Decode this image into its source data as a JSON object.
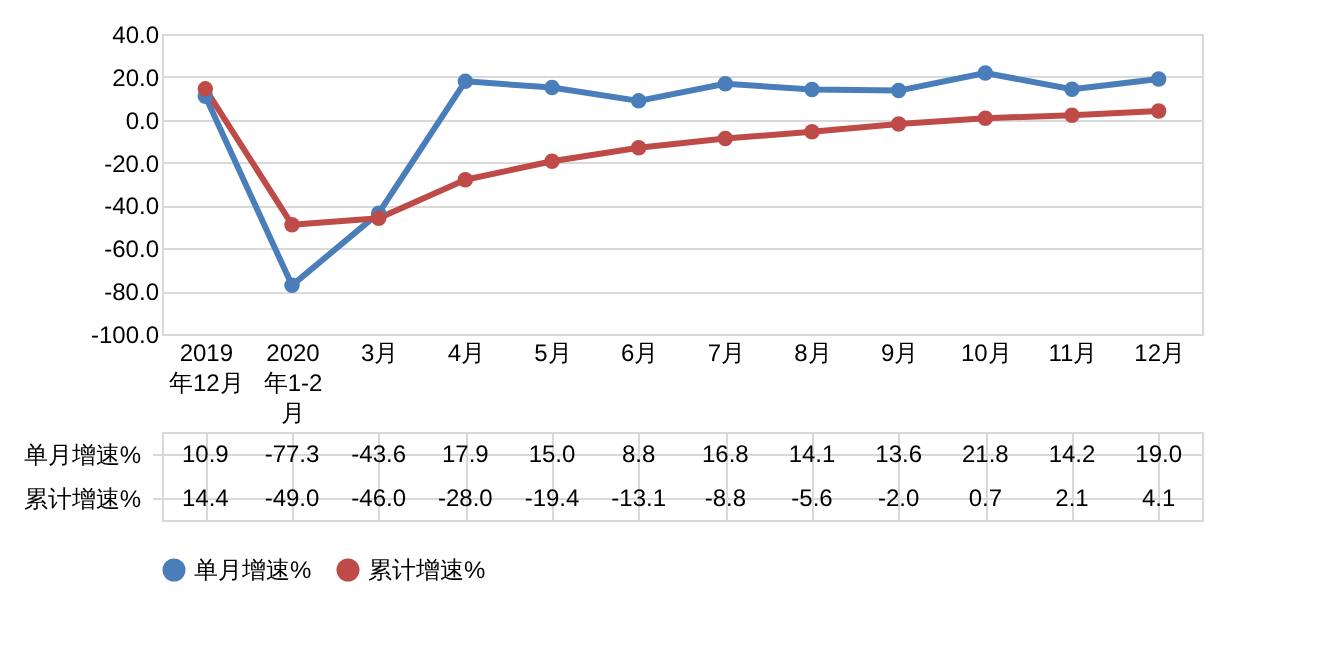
{
  "chart_data": {
    "type": "line",
    "categories": [
      "2019年12月",
      "2020年1-2月",
      "3月",
      "4月",
      "5月",
      "6月",
      "7月",
      "8月",
      "9月",
      "10月",
      "11月",
      "12月"
    ],
    "series": [
      {
        "name": "单月增速%",
        "color": "#4a7ebb",
        "values": [
          10.9,
          -77.3,
          -43.6,
          17.9,
          15.0,
          8.8,
          16.8,
          14.1,
          13.6,
          21.8,
          14.2,
          19.0
        ],
        "value_labels": [
          "10.9",
          "-77.3",
          "-43.6",
          "17.9",
          "15.0",
          "8.8",
          "16.8",
          "14.1",
          "13.6",
          "21.8",
          "14.2",
          "19.0"
        ]
      },
      {
        "name": "累计增速%",
        "color": "#be4b48",
        "values": [
          14.4,
          -49.0,
          -46.0,
          -28.0,
          -19.4,
          -13.1,
          -8.8,
          -5.6,
          -2.0,
          0.7,
          2.1,
          4.1
        ],
        "value_labels": [
          "14.4",
          "-49.0",
          "-46.0",
          "-28.0",
          "-19.4",
          "-13.1",
          "-8.8",
          "-5.6",
          "-2.0",
          "0.7",
          "2.1",
          "4.1"
        ]
      }
    ],
    "ylim": [
      -100,
      40
    ],
    "yticks": [
      {
        "value": -100,
        "label": "-100.0"
      },
      {
        "value": -80,
        "label": "-80.0"
      },
      {
        "value": -60,
        "label": "-60.0"
      },
      {
        "value": -40,
        "label": "-40.0"
      },
      {
        "value": -20,
        "label": "-20.0"
      },
      {
        "value": 0,
        "label": "0.0"
      },
      {
        "value": 20,
        "label": "20.0"
      },
      {
        "value": 40,
        "label": "40.0"
      }
    ],
    "grid": "y",
    "legend": "bottom",
    "marker": "circle",
    "line_style": "solid"
  }
}
